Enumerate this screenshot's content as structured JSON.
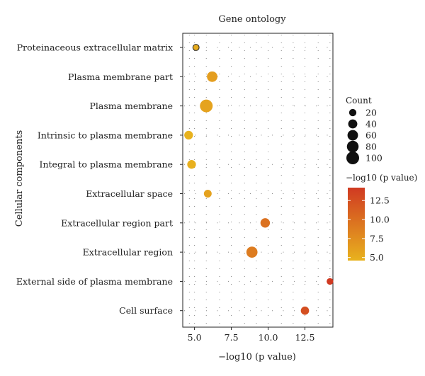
{
  "chart_data": {
    "type": "scatter",
    "title": "Gene ontology",
    "xlabel": "−log10 (p value)",
    "ylabel": "Cellular components",
    "xlim": [
      4.2,
      14.4
    ],
    "xticks": [
      "5.0",
      "7.5",
      "10.0",
      "12.5"
    ],
    "xtick_values": [
      5.0,
      7.5,
      10.0,
      12.5
    ],
    "categories": [
      "Proteinaceous extracellular matrix",
      "Plasma membrane part",
      "Plasma membrane",
      "Intrinsic to plasma membrane",
      "Integral to plasma membrane",
      "Extracellular space",
      "Extracellular region part",
      "Extracellular region",
      "External side of plasma membrane",
      "Cell surface"
    ],
    "points": [
      {
        "category": "Proteinaceous extracellular matrix",
        "x": 5.1,
        "count": 12
      },
      {
        "category": "Plasma membrane part",
        "x": 6.2,
        "count": 60
      },
      {
        "category": "Plasma membrane",
        "x": 5.8,
        "count": 100
      },
      {
        "category": "Intrinsic to plasma membrane",
        "x": 4.6,
        "count": 35
      },
      {
        "category": "Integral to plasma membrane",
        "x": 4.8,
        "count": 35
      },
      {
        "category": "Extracellular space",
        "x": 5.9,
        "count": 25
      },
      {
        "category": "Extracellular region part",
        "x": 9.8,
        "count": 45
      },
      {
        "category": "Extracellular region",
        "x": 8.9,
        "count": 70
      },
      {
        "category": "External side of plasma membrane",
        "x": 14.2,
        "count": 15
      },
      {
        "category": "Cell surface",
        "x": 12.5,
        "count": 30
      }
    ],
    "legend_size": {
      "title": "Count",
      "values": [
        20,
        40,
        60,
        80,
        100
      ]
    },
    "legend_color": {
      "title": "−log10 (p value)",
      "ticks": [
        "12.5",
        "10.0",
        "7.5",
        "5.0"
      ],
      "tick_values": [
        12.5,
        10.0,
        7.5,
        5.0
      ],
      "range": [
        4.6,
        14.2
      ],
      "color_low": "#e8b21e",
      "color_high": "#d03a22"
    },
    "grid": "dotted",
    "legend_position": "right"
  }
}
